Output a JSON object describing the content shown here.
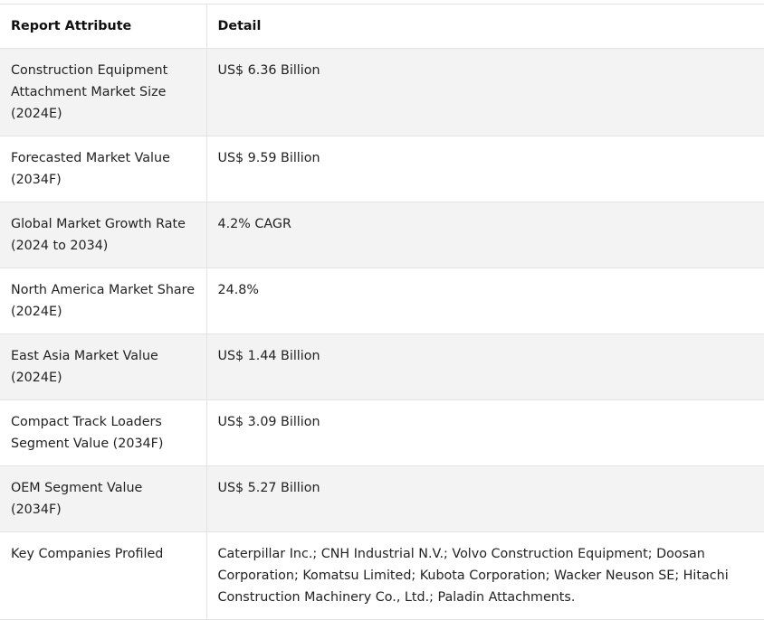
{
  "table": {
    "headers": {
      "attribute": "Report Attribute",
      "detail": "Detail"
    },
    "rows": [
      {
        "attribute": "Construction Equipment Attachment Market Size (2024E)",
        "detail": "US$ 6.36 Billion"
      },
      {
        "attribute": "Forecasted Market Value (2034F)",
        "detail": "US$ 9.59 Billion"
      },
      {
        "attribute": "Global Market Growth Rate (2024 to 2034)",
        "detail": "4.2% CAGR"
      },
      {
        "attribute": "North America Market Share (2024E)",
        "detail": "24.8%"
      },
      {
        "attribute": "East Asia Market Value (2024E)",
        "detail": "US$ 1.44 Billion"
      },
      {
        "attribute": "Compact Track Loaders Segment Value (2034F)",
        "detail": "US$ 3.09 Billion"
      },
      {
        "attribute": "OEM Segment Value (2034F)",
        "detail": "US$ 5.27 Billion"
      },
      {
        "attribute": "Key Companies Profiled",
        "detail": "Caterpillar Inc.; CNH Industrial N.V.; Volvo Construction Equipment; Doosan Corporation; Komatsu Limited; Kubota Corporation; Wacker Neuson SE; Hitachi Construction Machinery Co., Ltd.; Paladin Attachments."
      }
    ]
  }
}
